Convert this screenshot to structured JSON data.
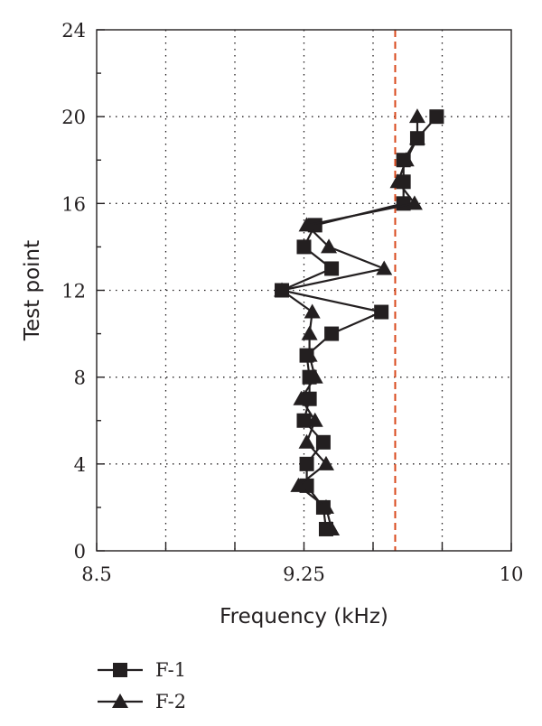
{
  "chart_data": {
    "type": "line",
    "xlabel": "Frequency (kHz)",
    "ylabel": "Test point",
    "xlim": [
      8.5,
      10
    ],
    "ylim": [
      0,
      24
    ],
    "x_ticks": [
      "8.5",
      "9.25",
      "10"
    ],
    "y_ticks": [
      "0",
      "4",
      "8",
      "12",
      "16",
      "20",
      "24"
    ],
    "grid": true,
    "reference_line": {
      "x": 9.58,
      "color": "#d9481c",
      "style": "dashed"
    },
    "legend_position": "bottom-left",
    "series": [
      {
        "name": "F-1",
        "marker": "square",
        "points": [
          {
            "x": 9.33,
            "y": 1
          },
          {
            "x": 9.32,
            "y": 2
          },
          {
            "x": 9.26,
            "y": 3
          },
          {
            "x": 9.26,
            "y": 4
          },
          {
            "x": 9.32,
            "y": 5
          },
          {
            "x": 9.25,
            "y": 6
          },
          {
            "x": 9.27,
            "y": 7
          },
          {
            "x": 9.27,
            "y": 8
          },
          {
            "x": 9.26,
            "y": 9
          },
          {
            "x": 9.35,
            "y": 10
          },
          {
            "x": 9.53,
            "y": 11
          },
          {
            "x": 9.17,
            "y": 12
          },
          {
            "x": 9.35,
            "y": 13
          },
          {
            "x": 9.25,
            "y": 14
          },
          {
            "x": 9.29,
            "y": 15
          },
          {
            "x": 9.61,
            "y": 16
          },
          {
            "x": 9.61,
            "y": 17
          },
          {
            "x": 9.61,
            "y": 18
          },
          {
            "x": 9.66,
            "y": 19
          },
          {
            "x": 9.73,
            "y": 20
          }
        ]
      },
      {
        "name": "F-2",
        "marker": "triangle",
        "points": [
          {
            "x": 9.35,
            "y": 1
          },
          {
            "x": 9.33,
            "y": 2
          },
          {
            "x": 9.23,
            "y": 3
          },
          {
            "x": 9.33,
            "y": 4
          },
          {
            "x": 9.26,
            "y": 5
          },
          {
            "x": 9.29,
            "y": 6
          },
          {
            "x": 9.24,
            "y": 7
          },
          {
            "x": 9.29,
            "y": 8
          },
          {
            "x": 9.27,
            "y": 9
          },
          {
            "x": 9.27,
            "y": 10
          },
          {
            "x": 9.28,
            "y": 11
          },
          {
            "x": 9.17,
            "y": 12
          },
          {
            "x": 9.54,
            "y": 13
          },
          {
            "x": 9.34,
            "y": 14
          },
          {
            "x": 9.26,
            "y": 15
          },
          {
            "x": 9.65,
            "y": 16
          },
          {
            "x": 9.59,
            "y": 17
          },
          {
            "x": 9.62,
            "y": 18
          },
          {
            "x": 9.66,
            "y": 19
          },
          {
            "x": 9.66,
            "y": 20
          }
        ]
      }
    ]
  }
}
